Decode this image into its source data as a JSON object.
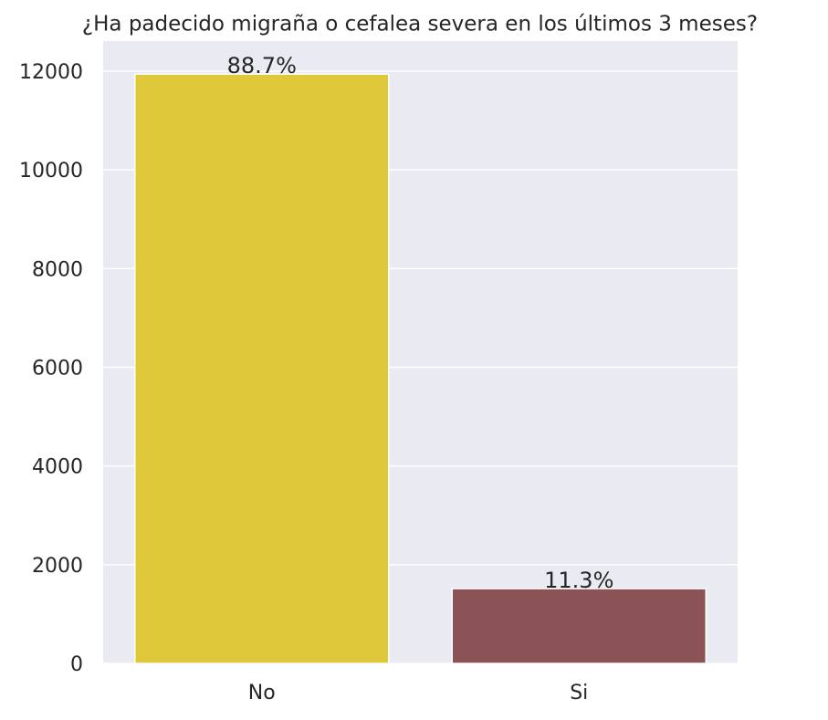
{
  "chart_data": {
    "type": "bar",
    "title": "¿Ha padecido migraña o cefalea severa en los últimos 3 meses?",
    "categories": [
      "No",
      "Si"
    ],
    "values": [
      11940,
      1516
    ],
    "annotations": [
      "88.7%",
      "11.3%"
    ],
    "colors": [
      "#dfc83a",
      "#8b5355"
    ],
    "ylim": [
      0,
      12610
    ],
    "yticks": [
      0,
      2000,
      4000,
      6000,
      8000,
      10000,
      12000
    ],
    "grid": true
  }
}
